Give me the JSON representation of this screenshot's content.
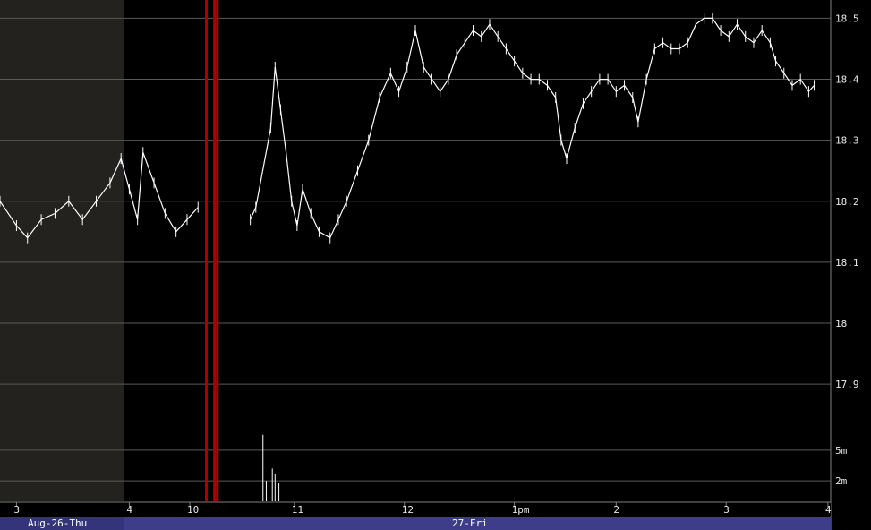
{
  "chart_data": {
    "type": "line",
    "style": "intraday price bars with volume histogram",
    "colors": {
      "background": "#000000",
      "previous_session_shading": "#23221e",
      "price": "#ffffff",
      "gridline": "#5a5a5a",
      "highlight_bar": "#b00000",
      "date_band": "#3d3d8a"
    },
    "y_axis": {
      "ticks": [
        "18.5",
        "18.4",
        "18.3",
        "18.2",
        "18.1",
        "18",
        "17.9"
      ],
      "tick_values": [
        18.5,
        18.4,
        18.3,
        18.2,
        18.1,
        18.0,
        17.9
      ],
      "range": [
        17.84,
        18.53
      ]
    },
    "volume_axis": {
      "ticks": [
        "5m",
        "2m"
      ],
      "tick_values": [
        5,
        2
      ],
      "range": [
        0,
        7
      ]
    },
    "x_axis": {
      "ticks": [
        "3",
        "4",
        "10",
        "11",
        "12",
        "1pm",
        "2",
        "3",
        "4"
      ],
      "dates": [
        "Aug-26-Thu",
        "27-Fri"
      ]
    },
    "price_series": [
      {
        "t": 0.0,
        "v": 18.2
      },
      {
        "t": 0.3,
        "v": 18.16
      },
      {
        "t": 0.5,
        "v": 18.14
      },
      {
        "t": 0.75,
        "v": 18.17
      },
      {
        "t": 1.0,
        "v": 18.18
      },
      {
        "t": 1.25,
        "v": 18.2
      },
      {
        "t": 1.5,
        "v": 18.17
      },
      {
        "t": 1.75,
        "v": 18.2
      },
      {
        "t": 2.0,
        "v": 18.23
      },
      {
        "t": 2.2,
        "v": 18.27
      },
      {
        "t": 2.35,
        "v": 18.22
      },
      {
        "t": 2.5,
        "v": 18.17
      },
      {
        "t": 2.6,
        "v": 18.28
      },
      {
        "t": 2.8,
        "v": 18.23
      },
      {
        "t": 3.0,
        "v": 18.18
      },
      {
        "t": 3.2,
        "v": 18.15
      },
      {
        "t": 3.4,
        "v": 18.17
      },
      {
        "t": 3.6,
        "v": 18.19
      },
      {
        "t": 4.55,
        "v": 18.17
      },
      {
        "t": 4.65,
        "v": 18.19
      },
      {
        "t": 4.92,
        "v": 18.32
      },
      {
        "t": 5.0,
        "v": 18.42
      },
      {
        "t": 5.1,
        "v": 18.35
      },
      {
        "t": 5.2,
        "v": 18.28
      },
      {
        "t": 5.3,
        "v": 18.2
      },
      {
        "t": 5.4,
        "v": 18.16
      },
      {
        "t": 5.5,
        "v": 18.22
      },
      {
        "t": 5.65,
        "v": 18.18
      },
      {
        "t": 5.8,
        "v": 18.15
      },
      {
        "t": 6.0,
        "v": 18.14
      },
      {
        "t": 6.15,
        "v": 18.17
      },
      {
        "t": 6.3,
        "v": 18.2
      },
      {
        "t": 6.5,
        "v": 18.25
      },
      {
        "t": 6.7,
        "v": 18.3
      },
      {
        "t": 6.9,
        "v": 18.37
      },
      {
        "t": 7.1,
        "v": 18.41
      },
      {
        "t": 7.25,
        "v": 18.38
      },
      {
        "t": 7.4,
        "v": 18.42
      },
      {
        "t": 7.55,
        "v": 18.48
      },
      {
        "t": 7.7,
        "v": 18.42
      },
      {
        "t": 7.85,
        "v": 18.4
      },
      {
        "t": 8.0,
        "v": 18.38
      },
      {
        "t": 8.15,
        "v": 18.4
      },
      {
        "t": 8.3,
        "v": 18.44
      },
      {
        "t": 8.45,
        "v": 18.46
      },
      {
        "t": 8.6,
        "v": 18.48
      },
      {
        "t": 8.75,
        "v": 18.47
      },
      {
        "t": 8.9,
        "v": 18.49
      },
      {
        "t": 9.05,
        "v": 18.47
      },
      {
        "t": 9.2,
        "v": 18.45
      },
      {
        "t": 9.35,
        "v": 18.43
      },
      {
        "t": 9.5,
        "v": 18.41
      },
      {
        "t": 9.65,
        "v": 18.4
      },
      {
        "t": 9.8,
        "v": 18.4
      },
      {
        "t": 9.95,
        "v": 18.39
      },
      {
        "t": 10.1,
        "v": 18.37
      },
      {
        "t": 10.2,
        "v": 18.3
      },
      {
        "t": 10.3,
        "v": 18.27
      },
      {
        "t": 10.45,
        "v": 18.32
      },
      {
        "t": 10.6,
        "v": 18.36
      },
      {
        "t": 10.75,
        "v": 18.38
      },
      {
        "t": 10.9,
        "v": 18.4
      },
      {
        "t": 11.05,
        "v": 18.4
      },
      {
        "t": 11.2,
        "v": 18.38
      },
      {
        "t": 11.35,
        "v": 18.39
      },
      {
        "t": 11.5,
        "v": 18.37
      },
      {
        "t": 11.6,
        "v": 18.33
      },
      {
        "t": 11.75,
        "v": 18.4
      },
      {
        "t": 11.9,
        "v": 18.45
      },
      {
        "t": 12.05,
        "v": 18.46
      },
      {
        "t": 12.2,
        "v": 18.45
      },
      {
        "t": 12.35,
        "v": 18.45
      },
      {
        "t": 12.5,
        "v": 18.46
      },
      {
        "t": 12.65,
        "v": 18.49
      },
      {
        "t": 12.8,
        "v": 18.5
      },
      {
        "t": 12.95,
        "v": 18.5
      },
      {
        "t": 13.1,
        "v": 18.48
      },
      {
        "t": 13.25,
        "v": 18.47
      },
      {
        "t": 13.4,
        "v": 18.49
      },
      {
        "t": 13.55,
        "v": 18.47
      },
      {
        "t": 13.7,
        "v": 18.46
      },
      {
        "t": 13.85,
        "v": 18.48
      },
      {
        "t": 14.0,
        "v": 18.46
      },
      {
        "t": 14.1,
        "v": 18.43
      },
      {
        "t": 14.25,
        "v": 18.41
      },
      {
        "t": 14.4,
        "v": 18.39
      },
      {
        "t": 14.55,
        "v": 18.4
      },
      {
        "t": 14.7,
        "v": 18.38
      },
      {
        "t": 14.8,
        "v": 18.39
      }
    ],
    "volume_bars": [
      {
        "t": 4.78,
        "v": 6.5
      },
      {
        "t": 4.84,
        "v": 2.0
      },
      {
        "t": 4.95,
        "v": 3.2
      },
      {
        "t": 5.0,
        "v": 2.7
      },
      {
        "t": 5.07,
        "v": 1.8
      }
    ],
    "highlight_bars": [
      3.75,
      3.9,
      3.95
    ]
  }
}
